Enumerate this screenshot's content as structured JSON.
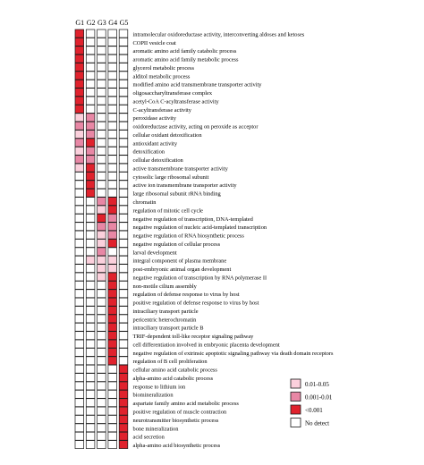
{
  "chart_data": {
    "type": "heatmap",
    "columns": [
      "G1",
      "G2",
      "G3",
      "G4",
      "G5"
    ],
    "colors": {
      "none": "#ffffff",
      "p_0.01_0.05": "#fbd0dc",
      "p_0.001_0.01": "#e887a5",
      "p_lt_0.001": "#e0222d",
      "border": "#1a1a1a"
    },
    "legend": [
      {
        "label": "0.01-0.05",
        "level": 1
      },
      {
        "label": "0.001-0.01",
        "level": 2
      },
      {
        "label": "<0.001",
        "level": 3
      },
      {
        "label": "No detect",
        "level": 0
      }
    ],
    "rows": [
      {
        "term": "intramolecular oxidoreductase activity, interconverting aldoses and ketoses",
        "levels": [
          3,
          0,
          0,
          0,
          0
        ]
      },
      {
        "term": "COPII vesicle coat",
        "levels": [
          3,
          0,
          0,
          0,
          0
        ]
      },
      {
        "term": "aromatic amino acid family catabolic process",
        "levels": [
          3,
          0,
          0,
          0,
          0
        ]
      },
      {
        "term": "aromatic amino acid family metabolic process",
        "levels": [
          3,
          0,
          0,
          0,
          0
        ]
      },
      {
        "term": "glycerol metabolic process",
        "levels": [
          3,
          0,
          0,
          0,
          0
        ]
      },
      {
        "term": "alditol metabolic process",
        "levels": [
          3,
          0,
          0,
          0,
          0
        ]
      },
      {
        "term": "modified amino acid transmembrane transporter activity",
        "levels": [
          3,
          0,
          0,
          0,
          0
        ]
      },
      {
        "term": "oligosaccharyltransferase complex",
        "levels": [
          3,
          0,
          0,
          0,
          0
        ]
      },
      {
        "term": "acetyl-CoA C-acyltransferase activity",
        "levels": [
          3,
          0,
          0,
          0,
          0
        ]
      },
      {
        "term": "C-acyltransferase activity",
        "levels": [
          3,
          0,
          0,
          0,
          0
        ]
      },
      {
        "term": "peroxidase activity",
        "levels": [
          1,
          2,
          0,
          0,
          0
        ]
      },
      {
        "term": "oxidoreductase activity, acting on peroxide as acceptor",
        "levels": [
          2,
          2,
          0,
          0,
          0
        ]
      },
      {
        "term": "cellular oxidant detoxification",
        "levels": [
          1,
          2,
          0,
          0,
          0
        ]
      },
      {
        "term": "antioxidant activity",
        "levels": [
          2,
          3,
          0,
          0,
          0
        ]
      },
      {
        "term": "detoxification",
        "levels": [
          1,
          2,
          0,
          0,
          0
        ]
      },
      {
        "term": "cellular detoxification",
        "levels": [
          2,
          2,
          0,
          0,
          0
        ]
      },
      {
        "term": "active transmembrane transporter activity",
        "levels": [
          1,
          3,
          0,
          0,
          0
        ]
      },
      {
        "term": "cytosolic large ribosomal subunit",
        "levels": [
          0,
          3,
          0,
          0,
          0
        ]
      },
      {
        "term": "active ion transmembrane transporter activity",
        "levels": [
          0,
          3,
          0,
          0,
          0
        ]
      },
      {
        "term": "large ribosomal subunit rRNA binding",
        "levels": [
          0,
          3,
          0,
          0,
          0
        ]
      },
      {
        "term": "chromatin",
        "levels": [
          0,
          0,
          2,
          3,
          0
        ]
      },
      {
        "term": "regulation of mitotic cell cycle",
        "levels": [
          0,
          0,
          1,
          3,
          0
        ]
      },
      {
        "term": "negative regulation of transcription, DNA-templated",
        "levels": [
          0,
          0,
          3,
          2,
          0
        ]
      },
      {
        "term": "negative regulation of nucleic acid-templated transcription",
        "levels": [
          0,
          0,
          2,
          2,
          0
        ]
      },
      {
        "term": "negative regulation of RNA biosynthetic process",
        "levels": [
          0,
          0,
          1,
          2,
          0
        ]
      },
      {
        "term": "negative regulation of cellular process",
        "levels": [
          0,
          0,
          1,
          3,
          0
        ]
      },
      {
        "term": "larval development",
        "levels": [
          0,
          0,
          2,
          0,
          0
        ]
      },
      {
        "term": "integral component of plasma membrane",
        "levels": [
          0,
          1,
          1,
          1,
          0
        ]
      },
      {
        "term": "post-embryonic animal organ development",
        "levels": [
          0,
          0,
          1,
          1,
          0
        ]
      },
      {
        "term": "negative regulation of transcription by RNA polymerase II",
        "levels": [
          0,
          0,
          1,
          3,
          0
        ]
      },
      {
        "term": "non-motile cilium assembly",
        "levels": [
          0,
          0,
          0,
          3,
          0
        ]
      },
      {
        "term": "regulation of defense response to virus by host",
        "levels": [
          0,
          0,
          0,
          3,
          0
        ]
      },
      {
        "term": "positive regulation of defense response to virus by host",
        "levels": [
          0,
          0,
          0,
          3,
          0
        ]
      },
      {
        "term": "intraciliary transport particle",
        "levels": [
          0,
          0,
          0,
          3,
          0
        ]
      },
      {
        "term": "pericentric heterochromatin",
        "levels": [
          0,
          0,
          0,
          3,
          0
        ]
      },
      {
        "term": "intraciliary transport particle B",
        "levels": [
          0,
          0,
          0,
          3,
          0
        ]
      },
      {
        "term": "TRIF-dependent toll-like receptor signaling pathway",
        "levels": [
          0,
          0,
          0,
          3,
          0
        ]
      },
      {
        "term": "cell differentiation involved in embryonic placenta development",
        "levels": [
          0,
          0,
          0,
          3,
          0
        ]
      },
      {
        "term": "negative regulation of extrinsic apoptotic signaling pathway via death domain receptors",
        "levels": [
          0,
          0,
          0,
          3,
          0
        ]
      },
      {
        "term": "regulation of B cell proliferation",
        "levels": [
          0,
          0,
          0,
          3,
          0
        ]
      },
      {
        "term": "cellular amino acid catabolic process",
        "levels": [
          0,
          0,
          0,
          0,
          3
        ]
      },
      {
        "term": "alpha-amino acid catabolic process",
        "levels": [
          0,
          0,
          0,
          0,
          3
        ]
      },
      {
        "term": "response to lithium ion",
        "levels": [
          0,
          0,
          0,
          0,
          3
        ]
      },
      {
        "term": "biomineralization",
        "levels": [
          0,
          0,
          0,
          0,
          3
        ]
      },
      {
        "term": "aspartate family amino acid metabolic process",
        "levels": [
          0,
          0,
          0,
          0,
          3
        ]
      },
      {
        "term": "positive regulation of muscle contraction",
        "levels": [
          0,
          0,
          0,
          0,
          3
        ]
      },
      {
        "term": "neurotransmitter biosynthetic process",
        "levels": [
          0,
          0,
          0,
          0,
          3
        ]
      },
      {
        "term": "bone mineralization",
        "levels": [
          0,
          0,
          0,
          0,
          3
        ]
      },
      {
        "term": "acid secretion",
        "levels": [
          0,
          0,
          0,
          0,
          3
        ]
      },
      {
        "term": "alpha-amino acid biosynthetic process",
        "levels": [
          0,
          0,
          0,
          0,
          3
        ]
      }
    ]
  }
}
